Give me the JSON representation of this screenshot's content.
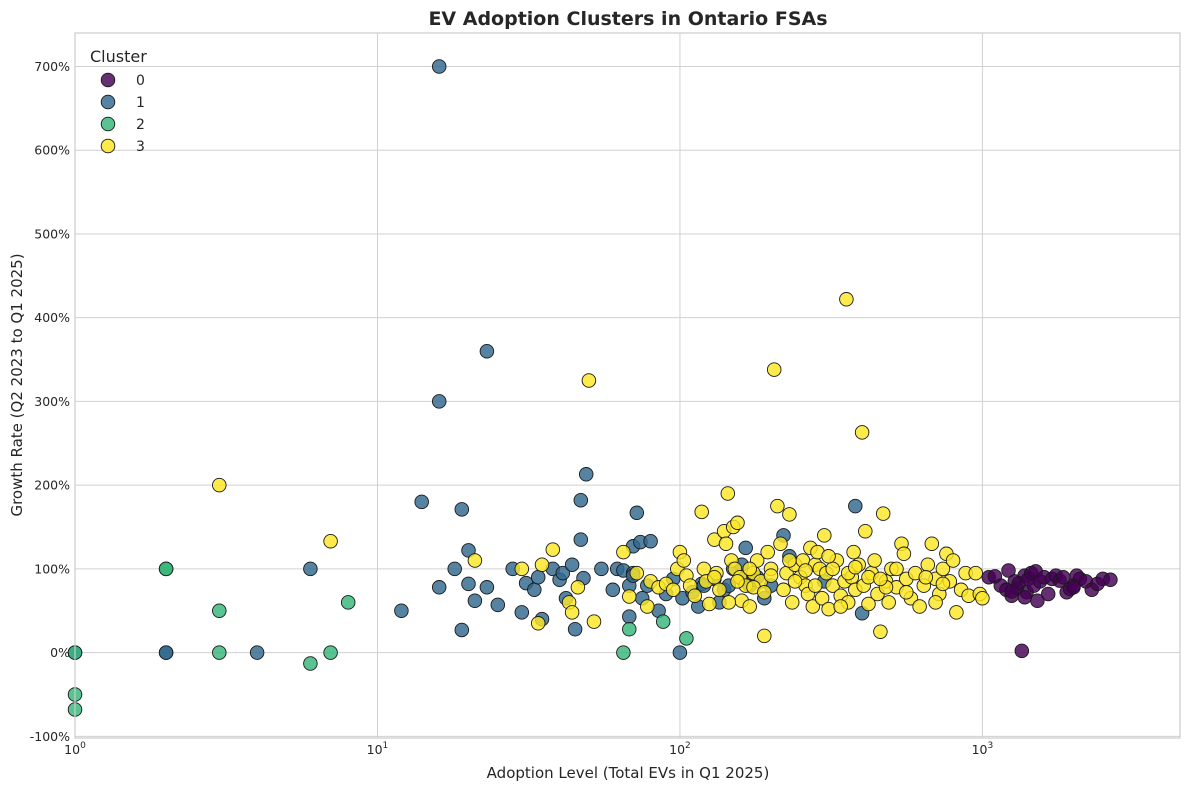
{
  "chart_data": {
    "type": "scatter",
    "title": "EV Adoption Clusters in Ontario FSAs",
    "xlabel": "Adoption Level (Total EVs in Q1 2025)",
    "ylabel": "Growth Rate (Q2 2023 to Q1 2025)",
    "x_scale": "log",
    "xlim": [
      1,
      4500
    ],
    "ylim": [
      -102,
      740
    ],
    "x_ticks": [
      {
        "value": 1,
        "label": "10",
        "sup": "0"
      },
      {
        "value": 10,
        "label": "10",
        "sup": "1"
      },
      {
        "value": 100,
        "label": "10",
        "sup": "2"
      },
      {
        "value": 1000,
        "label": "10",
        "sup": "3"
      }
    ],
    "y_ticks": [
      {
        "value": -100,
        "label": "-100%"
      },
      {
        "value": 0,
        "label": "0%"
      },
      {
        "value": 100,
        "label": "100%"
      },
      {
        "value": 200,
        "label": "200%"
      },
      {
        "value": 300,
        "label": "300%"
      },
      {
        "value": 400,
        "label": "400%"
      },
      {
        "value": 500,
        "label": "500%"
      },
      {
        "value": 600,
        "label": "600%"
      },
      {
        "value": 700,
        "label": "700%"
      }
    ],
    "grid": true,
    "legend": {
      "title": "Cluster",
      "position": "top-left"
    },
    "series": [
      {
        "name": "0",
        "color": "#440154",
        "points": [
          [
            1050,
            90
          ],
          [
            1100,
            91
          ],
          [
            1150,
            80
          ],
          [
            1200,
            75
          ],
          [
            1220,
            98
          ],
          [
            1250,
            68
          ],
          [
            1280,
            85
          ],
          [
            1300,
            77
          ],
          [
            1320,
            83
          ],
          [
            1350,
            2
          ],
          [
            1380,
            92
          ],
          [
            1400,
            72
          ],
          [
            1420,
            88
          ],
          [
            1450,
            95
          ],
          [
            1480,
            80
          ],
          [
            1500,
            97
          ],
          [
            1520,
            62
          ],
          [
            1550,
            85
          ],
          [
            1600,
            90
          ],
          [
            1650,
            70
          ],
          [
            1700,
            88
          ],
          [
            1750,
            92
          ],
          [
            1800,
            86
          ],
          [
            1850,
            90
          ],
          [
            1900,
            72
          ],
          [
            1950,
            76
          ],
          [
            2000,
            80
          ],
          [
            2050,
            92
          ],
          [
            2100,
            88
          ],
          [
            2200,
            85
          ],
          [
            2300,
            75
          ],
          [
            2400,
            82
          ],
          [
            2500,
            88
          ],
          [
            2650,
            87
          ],
          [
            2000,
            78
          ],
          [
            1250,
            73
          ],
          [
            1380,
            66
          ]
        ]
      },
      {
        "name": "1",
        "color": "#31688e",
        "points": [
          [
            1,
            0
          ],
          [
            2,
            0
          ],
          [
            2,
            0
          ],
          [
            4,
            0
          ],
          [
            6,
            100
          ],
          [
            12,
            50
          ],
          [
            14,
            180
          ],
          [
            16,
            700
          ],
          [
            16,
            300
          ],
          [
            16,
            78
          ],
          [
            18,
            100
          ],
          [
            19,
            27
          ],
          [
            19,
            171
          ],
          [
            20,
            122
          ],
          [
            20,
            82
          ],
          [
            21,
            62
          ],
          [
            23,
            360
          ],
          [
            23,
            78
          ],
          [
            25,
            57
          ],
          [
            28,
            100
          ],
          [
            30,
            48
          ],
          [
            31,
            83
          ],
          [
            33,
            75
          ],
          [
            34,
            90
          ],
          [
            35,
            40
          ],
          [
            38,
            100
          ],
          [
            40,
            87
          ],
          [
            41,
            95
          ],
          [
            42,
            65
          ],
          [
            44,
            105
          ],
          [
            45,
            28
          ],
          [
            47,
            135
          ],
          [
            47,
            182
          ],
          [
            48,
            89
          ],
          [
            49,
            213
          ],
          [
            55,
            100
          ],
          [
            60,
            75
          ],
          [
            62,
            100
          ],
          [
            65,
            98
          ],
          [
            68,
            43
          ],
          [
            68,
            80
          ],
          [
            70,
            127
          ],
          [
            70,
            95
          ],
          [
            70,
            92
          ],
          [
            72,
            167
          ],
          [
            74,
            132
          ],
          [
            75,
            65
          ],
          [
            78,
            80
          ],
          [
            80,
            133
          ],
          [
            85,
            50
          ],
          [
            90,
            70
          ],
          [
            95,
            88
          ],
          [
            100,
            0
          ],
          [
            102,
            65
          ],
          [
            110,
            72
          ],
          [
            115,
            55
          ],
          [
            118,
            82
          ],
          [
            120,
            80
          ],
          [
            130,
            88
          ],
          [
            135,
            60
          ],
          [
            140,
            75
          ],
          [
            145,
            80
          ],
          [
            150,
            100
          ],
          [
            160,
            105
          ],
          [
            160,
            88
          ],
          [
            165,
            125
          ],
          [
            170,
            80
          ],
          [
            175,
            87
          ],
          [
            180,
            90
          ],
          [
            190,
            65
          ],
          [
            200,
            80
          ],
          [
            220,
            140
          ],
          [
            230,
            115
          ],
          [
            300,
            85
          ],
          [
            380,
            175
          ],
          [
            400,
            47
          ]
        ]
      },
      {
        "name": "2",
        "color": "#35b779",
        "points": [
          [
            1,
            0
          ],
          [
            1,
            -50
          ],
          [
            1,
            -68
          ],
          [
            2,
            100
          ],
          [
            2,
            100
          ],
          [
            3,
            0
          ],
          [
            3,
            50
          ],
          [
            6,
            -13
          ],
          [
            7,
            0
          ],
          [
            8,
            60
          ],
          [
            65,
            0
          ],
          [
            68,
            28
          ],
          [
            88,
            37
          ],
          [
            105,
            17
          ]
        ]
      },
      {
        "name": "3",
        "color": "#fde725",
        "points": [
          [
            3,
            200
          ],
          [
            7,
            133
          ],
          [
            21,
            110
          ],
          [
            30,
            100
          ],
          [
            34,
            35
          ],
          [
            35,
            105
          ],
          [
            38,
            123
          ],
          [
            43,
            60
          ],
          [
            44,
            48
          ],
          [
            46,
            78
          ],
          [
            50,
            325
          ],
          [
            52,
            37
          ],
          [
            65,
            120
          ],
          [
            68,
            67
          ],
          [
            72,
            95
          ],
          [
            78,
            55
          ],
          [
            80,
            85
          ],
          [
            85,
            78
          ],
          [
            90,
            82
          ],
          [
            95,
            75
          ],
          [
            98,
            100
          ],
          [
            100,
            120
          ],
          [
            103,
            110
          ],
          [
            105,
            92
          ],
          [
            108,
            80
          ],
          [
            112,
            68
          ],
          [
            118,
            168
          ],
          [
            120,
            100
          ],
          [
            122,
            85
          ],
          [
            125,
            58
          ],
          [
            130,
            135
          ],
          [
            132,
            95
          ],
          [
            135,
            75
          ],
          [
            140,
            145
          ],
          [
            142,
            130
          ],
          [
            144,
            190
          ],
          [
            148,
            110
          ],
          [
            150,
            150
          ],
          [
            152,
            100
          ],
          [
            155,
            155
          ],
          [
            158,
            90
          ],
          [
            160,
            62
          ],
          [
            165,
            80
          ],
          [
            170,
            55
          ],
          [
            175,
            95
          ],
          [
            180,
            110
          ],
          [
            185,
            85
          ],
          [
            190,
            20
          ],
          [
            195,
            120
          ],
          [
            200,
            100
          ],
          [
            205,
            338
          ],
          [
            210,
            175
          ],
          [
            215,
            130
          ],
          [
            220,
            75
          ],
          [
            225,
            95
          ],
          [
            230,
            165
          ],
          [
            235,
            60
          ],
          [
            240,
            105
          ],
          [
            250,
            90
          ],
          [
            255,
            110
          ],
          [
            260,
            80
          ],
          [
            265,
            70
          ],
          [
            270,
            125
          ],
          [
            275,
            55
          ],
          [
            280,
            105
          ],
          [
            285,
            120
          ],
          [
            290,
            100
          ],
          [
            295,
            65
          ],
          [
            300,
            140
          ],
          [
            305,
            95
          ],
          [
            310,
            52
          ],
          [
            320,
            80
          ],
          [
            330,
            110
          ],
          [
            340,
            68
          ],
          [
            350,
            85
          ],
          [
            355,
            422
          ],
          [
            360,
            60
          ],
          [
            370,
            90
          ],
          [
            375,
            120
          ],
          [
            380,
            75
          ],
          [
            390,
            105
          ],
          [
            400,
            263
          ],
          [
            405,
            80
          ],
          [
            410,
            145
          ],
          [
            420,
            58
          ],
          [
            430,
            95
          ],
          [
            440,
            110
          ],
          [
            450,
            70
          ],
          [
            460,
            25
          ],
          [
            470,
            166
          ],
          [
            480,
            85
          ],
          [
            490,
            60
          ],
          [
            500,
            100
          ],
          [
            520,
            78
          ],
          [
            540,
            130
          ],
          [
            550,
            118
          ],
          [
            560,
            88
          ],
          [
            580,
            65
          ],
          [
            600,
            95
          ],
          [
            620,
            55
          ],
          [
            640,
            80
          ],
          [
            660,
            105
          ],
          [
            680,
            130
          ],
          [
            700,
            88
          ],
          [
            720,
            70
          ],
          [
            740,
            100
          ],
          [
            760,
            118
          ],
          [
            780,
            85
          ],
          [
            800,
            110
          ],
          [
            820,
            48
          ],
          [
            850,
            75
          ],
          [
            880,
            95
          ],
          [
            900,
            68
          ],
          [
            950,
            95
          ],
          [
            980,
            70
          ],
          [
            1000,
            65
          ],
          [
            130,
            90
          ],
          [
            170,
            100
          ],
          [
            200,
            92
          ],
          [
            240,
            85
          ],
          [
            280,
            80
          ],
          [
            320,
            100
          ],
          [
            360,
            95
          ],
          [
            420,
            90
          ],
          [
            480,
            78
          ],
          [
            560,
            72
          ],
          [
            650,
            90
          ],
          [
            740,
            82
          ],
          [
            175,
            78
          ],
          [
            260,
            98
          ],
          [
            310,
            115
          ],
          [
            380,
            102
          ],
          [
            460,
            88
          ],
          [
            145,
            60
          ],
          [
            190,
            72
          ],
          [
            230,
            110
          ],
          [
            340,
            55
          ],
          [
            520,
            100
          ],
          [
            700,
            60
          ],
          [
            155,
            85
          ]
        ]
      }
    ]
  }
}
